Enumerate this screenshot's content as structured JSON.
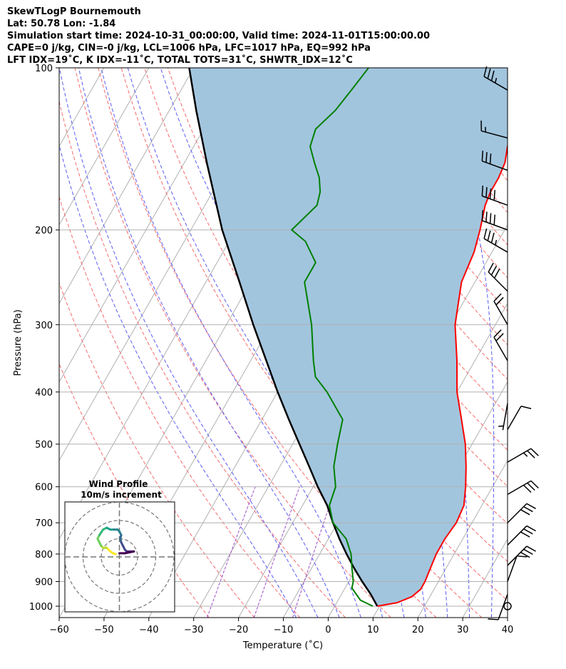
{
  "header": {
    "line1": "SkewTLogP Bournemouth",
    "line2": "Lat: 50.78   Lon: -1.84",
    "line3": "Simulation start time: 2024-10-31_00:00:00, Valid time: 2024-11-01T15:00:00.00",
    "line4": "CAPE=0 j/kg, CIN=-0 j/kg, LCL=1006 hPa, LFC=1017 hPa, EQ=992 hPa",
    "line5": "LFT IDX=19˚C, K IDX=-11˚C, TOTAL TOTS=31˚C, SHWTR_IDX=12˚C"
  },
  "chart_data": {
    "type": "skew-t",
    "xlabel": "Temperature (˚C)",
    "ylabel": "Pressure (hPa)",
    "xlim": [
      -60,
      40
    ],
    "ylim": [
      1050,
      100
    ],
    "x_ticks": [
      "−60",
      "−50",
      "−40",
      "−30",
      "−20",
      "−10",
      "0",
      "10",
      "20",
      "30",
      "40"
    ],
    "x_tick_values": [
      -60,
      -50,
      -40,
      -30,
      -20,
      -10,
      0,
      10,
      20,
      30,
      40
    ],
    "y_ticks": [
      "100",
      "200",
      "300",
      "400",
      "500",
      "600",
      "700",
      "800",
      "900",
      "1000"
    ],
    "y_tick_values": [
      100,
      200,
      300,
      400,
      500,
      600,
      700,
      800,
      900,
      1000
    ],
    "grid": true,
    "colors": {
      "temperature": "#ff0000",
      "dewpoint": "#008000",
      "parcel": "#000000",
      "cape_fill": "#a2c5de",
      "dry_adiabat": "#f56b6b",
      "moist_adiabat": "#5b5bf5",
      "mixing_ratio": "#9e4fc8",
      "isotherm": "#b0b0b0"
    },
    "temperature_profile": [
      [
        1000,
        9.5
      ],
      [
        985,
        13.5
      ],
      [
        960,
        16
      ],
      [
        930,
        17
      ],
      [
        900,
        17
      ],
      [
        850,
        16.5
      ],
      [
        800,
        16
      ],
      [
        750,
        16
      ],
      [
        700,
        16.5
      ],
      [
        650,
        16
      ],
      [
        600,
        14
      ],
      [
        550,
        11.5
      ],
      [
        500,
        8.5
      ],
      [
        450,
        4.5
      ],
      [
        400,
        0
      ],
      [
        350,
        -4
      ],
      [
        300,
        -9
      ],
      [
        250,
        -13
      ],
      [
        220,
        -14
      ],
      [
        200,
        -15.5
      ],
      [
        180,
        -17.5
      ],
      [
        170,
        -18
      ],
      [
        160,
        -18
      ],
      [
        150,
        -18.5
      ],
      [
        140,
        -20
      ],
      [
        130,
        -21
      ],
      [
        120,
        -22.5
      ],
      [
        110,
        -24
      ],
      [
        100,
        -26
      ]
    ],
    "dewpoint_profile": [
      [
        1000,
        8.5
      ],
      [
        975,
        5
      ],
      [
        925,
        1.5
      ],
      [
        900,
        1
      ],
      [
        850,
        -1
      ],
      [
        800,
        -3
      ],
      [
        750,
        -6
      ],
      [
        700,
        -11
      ],
      [
        650,
        -14
      ],
      [
        600,
        -15
      ],
      [
        550,
        -18
      ],
      [
        500,
        -20
      ],
      [
        450,
        -22
      ],
      [
        400,
        -29
      ],
      [
        375,
        -33.5
      ],
      [
        350,
        -36
      ],
      [
        300,
        -41
      ],
      [
        250,
        -48
      ],
      [
        230,
        -48
      ],
      [
        210,
        -53
      ],
      [
        200,
        -57.5
      ],
      [
        180,
        -55
      ],
      [
        170,
        -56
      ],
      [
        160,
        -58
      ],
      [
        150,
        -61
      ],
      [
        140,
        -64
      ],
      [
        130,
        -65
      ],
      [
        120,
        -63
      ],
      [
        110,
        -62
      ],
      [
        100,
        -61
      ]
    ],
    "parcel_profile": [
      [
        1000,
        9.5
      ],
      [
        950,
        6.5
      ],
      [
        900,
        3
      ],
      [
        850,
        -0.5
      ],
      [
        800,
        -4
      ],
      [
        750,
        -7.5
      ],
      [
        700,
        -11
      ],
      [
        650,
        -14.5
      ],
      [
        600,
        -19
      ],
      [
        550,
        -23.5
      ],
      [
        500,
        -28.5
      ],
      [
        450,
        -34
      ],
      [
        400,
        -40
      ],
      [
        350,
        -46.5
      ],
      [
        300,
        -54
      ],
      [
        250,
        -62.5
      ],
      [
        200,
        -73
      ],
      [
        150,
        -85
      ],
      [
        120,
        -94
      ],
      [
        100,
        -101
      ]
    ],
    "wind_barbs": [
      {
        "p": 110,
        "speed_kt": 35,
        "dir_deg": 300
      },
      {
        "p": 135,
        "speed_kt": 15,
        "dir_deg": 285
      },
      {
        "p": 155,
        "speed_kt": 30,
        "dir_deg": 290
      },
      {
        "p": 180,
        "speed_kt": 40,
        "dir_deg": 290
      },
      {
        "p": 200,
        "speed_kt": 40,
        "dir_deg": 290
      },
      {
        "p": 220,
        "speed_kt": 35,
        "dir_deg": 300
      },
      {
        "p": 260,
        "speed_kt": 30,
        "dir_deg": 315
      },
      {
        "p": 300,
        "speed_kt": 20,
        "dir_deg": 330
      },
      {
        "p": 350,
        "speed_kt": 20,
        "dir_deg": 330
      },
      {
        "p": 420,
        "speed_kt": 5,
        "dir_deg": 190
      },
      {
        "p": 470,
        "speed_kt": 10,
        "dir_deg": 30
      },
      {
        "p": 540,
        "speed_kt": 25,
        "dir_deg": 60
      },
      {
        "p": 620,
        "speed_kt": 30,
        "dir_deg": 60
      },
      {
        "p": 700,
        "speed_kt": 30,
        "dir_deg": 45
      },
      {
        "p": 770,
        "speed_kt": 30,
        "dir_deg": 45
      },
      {
        "p": 840,
        "speed_kt": 30,
        "dir_deg": 45
      },
      {
        "p": 900,
        "speed_kt": 10,
        "dir_deg": 20
      },
      {
        "p": 950,
        "speed_kt": 10,
        "dir_deg": 200
      },
      {
        "p": 1000,
        "speed_kt": 0,
        "dir_deg": 0
      }
    ],
    "hodograph": {
      "title": "Wind Profile",
      "subtitle": "10m/s increment",
      "rings": [
        10,
        20,
        30
      ],
      "points": [
        [
          -2,
          1.5
        ],
        [
          -3.5,
          2
        ],
        [
          -5,
          3
        ],
        [
          -7,
          5
        ],
        [
          -9,
          5
        ],
        [
          -10,
          6
        ],
        [
          -11,
          8
        ],
        [
          -12,
          10
        ],
        [
          -11,
          12
        ],
        [
          -9,
          15
        ],
        [
          -7,
          16
        ],
        [
          -5,
          15
        ],
        [
          -3,
          15
        ],
        [
          -1,
          15
        ],
        [
          0,
          14
        ],
        [
          1,
          12
        ],
        [
          0.5,
          10
        ],
        [
          1,
          8
        ],
        [
          2,
          6
        ],
        [
          3,
          4
        ],
        [
          4,
          3
        ],
        [
          6,
          3
        ],
        [
          8,
          3
        ],
        [
          3,
          2
        ],
        [
          0,
          2
        ]
      ]
    }
  }
}
